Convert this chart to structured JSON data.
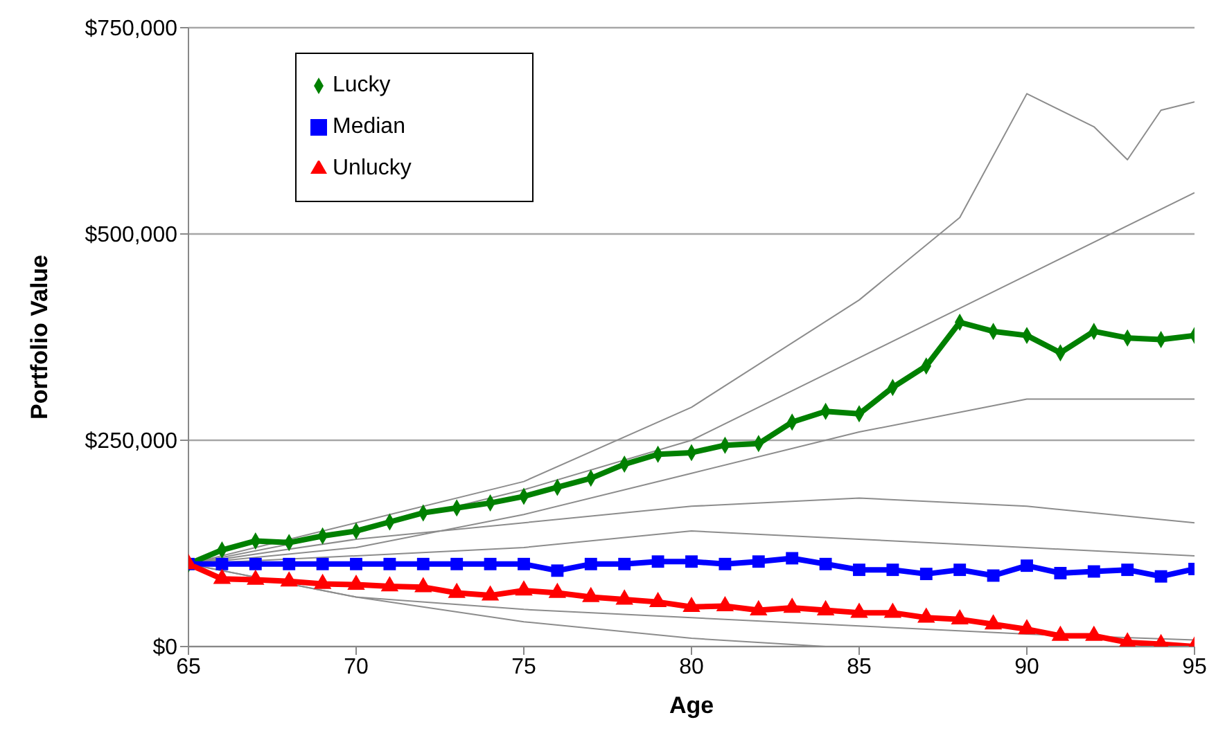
{
  "chart_data": {
    "type": "line",
    "xlabel": "Age",
    "ylabel": "Portfolio Value",
    "xlim": [
      65,
      95
    ],
    "xticks": [
      65,
      70,
      75,
      80,
      85,
      90,
      95
    ],
    "ylim": [
      0,
      750000
    ],
    "yticks": [
      {
        "value": 0,
        "label": "$0"
      },
      {
        "value": 250000,
        "label": "$250,000"
      },
      {
        "value": 500000,
        "label": "$500,000"
      },
      {
        "value": 750000,
        "label": "$750,000"
      }
    ],
    "x": [
      65,
      66,
      67,
      68,
      69,
      70,
      71,
      72,
      73,
      74,
      75,
      76,
      77,
      78,
      79,
      80,
      81,
      82,
      83,
      84,
      85,
      86,
      87,
      88,
      89,
      90,
      91,
      92,
      93,
      94,
      95
    ],
    "grid": "y",
    "legend": "top left",
    "line_style": "solid",
    "series": [
      {
        "color": "#8c8c8c",
        "marker": "none",
        "x": [
          65,
          70,
          75,
          80,
          85,
          88,
          90,
          92,
          93,
          94,
          95
        ],
        "values": [
          100000,
          150000,
          200000,
          290000,
          420000,
          520000,
          670000,
          630000,
          590000,
          650000,
          660000
        ]
      },
      {
        "color": "#8c8c8c",
        "marker": "none",
        "x": [
          65,
          70,
          75,
          80,
          84
        ],
        "values": [
          100000,
          60000,
          30000,
          10000,
          0
        ]
      },
      {
        "color": "#8c8c8c",
        "marker": "none",
        "x": [
          65,
          70,
          75,
          80,
          85,
          90,
          95
        ],
        "values": [
          100000,
          130000,
          150000,
          170000,
          180000,
          170000,
          150000
        ]
      },
      {
        "color": "#8c8c8c",
        "marker": "none",
        "x": [
          65,
          70,
          75,
          80,
          85,
          90,
          95
        ],
        "values": [
          100000,
          60000,
          45000,
          35000,
          25000,
          15000,
          8000
        ]
      },
      {
        "color": "#8c8c8c",
        "marker": "none",
        "x": [
          65,
          70,
          75,
          80,
          85,
          90,
          95
        ],
        "values": [
          100000,
          140000,
          190000,
          250000,
          350000,
          450000,
          550000
        ]
      },
      {
        "color": "#8c8c8c",
        "marker": "none",
        "x": [
          65,
          70,
          75,
          80,
          85,
          90,
          95
        ],
        "values": [
          100000,
          120000,
          160000,
          210000,
          260000,
          300000,
          300000
        ]
      },
      {
        "color": "#8c8c8c",
        "marker": "none",
        "x": [
          65,
          70,
          75,
          80,
          85,
          90,
          95
        ],
        "values": [
          100000,
          110000,
          120000,
          140000,
          130000,
          120000,
          110000
        ]
      },
      {
        "name": "Lucky",
        "color": "#008000",
        "marker": "diamond",
        "values": [
          100000,
          117000,
          128000,
          126000,
          134000,
          140000,
          151000,
          162000,
          168000,
          174000,
          182000,
          193000,
          204000,
          221000,
          233000,
          235000,
          244000,
          246000,
          272000,
          285000,
          282000,
          314000,
          340000,
          393000,
          382000,
          377000,
          356000,
          382000,
          374000,
          372000,
          377000
        ]
      },
      {
        "name": "Median",
        "color": "#0000ff",
        "marker": "square",
        "values": [
          100000,
          100000,
          100000,
          100000,
          100000,
          100000,
          100000,
          100000,
          100000,
          100000,
          100000,
          92000,
          100000,
          100000,
          103000,
          103000,
          100000,
          103000,
          107000,
          100000,
          93000,
          93000,
          88000,
          93000,
          86000,
          98000,
          89000,
          91000,
          93000,
          85000,
          94000
        ]
      },
      {
        "name": "Unlucky",
        "color": "#ff0000",
        "marker": "triangle",
        "values": [
          100000,
          82000,
          81000,
          79000,
          76000,
          75000,
          73000,
          72000,
          65000,
          62000,
          68000,
          65000,
          60000,
          57000,
          54000,
          48000,
          49000,
          44000,
          47000,
          44000,
          41000,
          41000,
          35000,
          33000,
          27000,
          21000,
          13000,
          13000,
          5000,
          3000,
          0
        ]
      }
    ]
  }
}
